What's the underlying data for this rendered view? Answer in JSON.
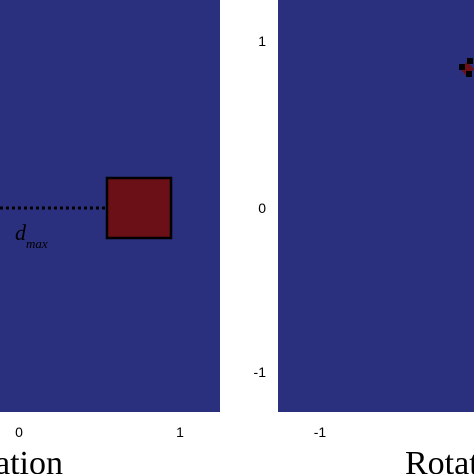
{
  "colors": {
    "panel_background": "#2a2f7e",
    "square_fill": "#6b1016",
    "square_stroke": "#000000",
    "dotted_line": "#000000",
    "marker": "#000000",
    "marker_fill": "#6b1016"
  },
  "left_panel": {
    "x_tick_labels": [
      "0",
      "1"
    ],
    "distance_label": {
      "symbol": "d",
      "subscript": "max"
    },
    "caption_partial": "ation"
  },
  "right_panel": {
    "y_tick_labels": [
      "1",
      "0",
      "-1"
    ],
    "x_tick_labels": [
      "-1"
    ],
    "caption_partial": "Rotat"
  }
}
